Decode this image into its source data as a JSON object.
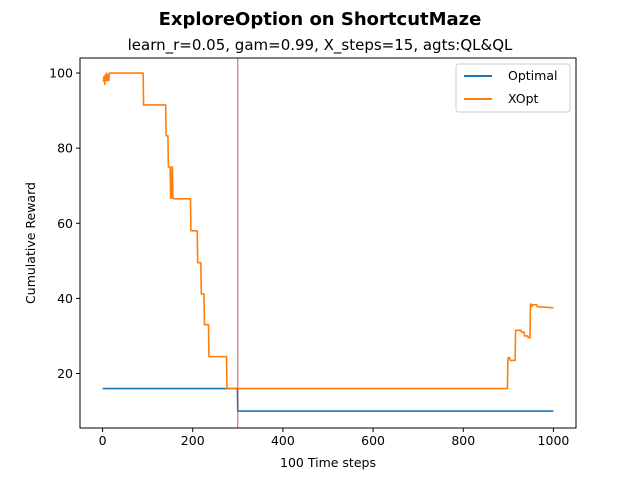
{
  "chart_data": {
    "type": "line",
    "title": "ExploreOption on ShortcutMaze",
    "subtitle": "learn_r=0.05, gam=0.99, X_steps=15, agts:QL&QL",
    "xlabel": "100 Time steps",
    "ylabel": "Cumulative Reward",
    "xlim": [
      -50,
      1050
    ],
    "ylim": [
      5.5,
      104
    ],
    "xticks": [
      0,
      200,
      400,
      600,
      800,
      1000
    ],
    "yticks": [
      20,
      40,
      60,
      80,
      100
    ],
    "grid": false,
    "legend_position": "top-right",
    "vline": {
      "x": 300,
      "color": "#d62728"
    },
    "series": [
      {
        "name": "Optimal",
        "color": "#1f77b4",
        "x": [
          0,
          299,
          300,
          1000
        ],
        "y": [
          16,
          16,
          10,
          10
        ]
      },
      {
        "name": "XOpt",
        "color": "#ff7f0e",
        "x": [
          0,
          2,
          3,
          5,
          6,
          8,
          9,
          11,
          12,
          14,
          15,
          18,
          20,
          90,
          91,
          140,
          141,
          145,
          146,
          150,
          151,
          153,
          154,
          155,
          156,
          157,
          158,
          195,
          196,
          210,
          211,
          218,
          219,
          225,
          226,
          235,
          236,
          240,
          241,
          245,
          246,
          275,
          276,
          898,
          899,
          903,
          904,
          915,
          916,
          928,
          929,
          935,
          936,
          943,
          944,
          948,
          949,
          950,
          951,
          952,
          953,
          963,
          964,
          1000
        ],
        "y": [
          98,
          98,
          99,
          97,
          99.5,
          98,
          100,
          98,
          99.5,
          98,
          100,
          100,
          100,
          100,
          91.5,
          91.5,
          83.3,
          83.3,
          75,
          75,
          66.7,
          66.7,
          75,
          75,
          66.7,
          66.7,
          66.5,
          66.5,
          58,
          58,
          49.5,
          49.5,
          41.2,
          41.2,
          33,
          33,
          24.5,
          24.5,
          24.5,
          24.5,
          24.5,
          24.5,
          16,
          16,
          24.2,
          24.2,
          23.5,
          23.5,
          31.5,
          31.5,
          31,
          31,
          30,
          30,
          29.5,
          29.5,
          38.5,
          38.5,
          37.8,
          37.8,
          38.3,
          38.3,
          37.8,
          37.5
        ]
      }
    ]
  }
}
